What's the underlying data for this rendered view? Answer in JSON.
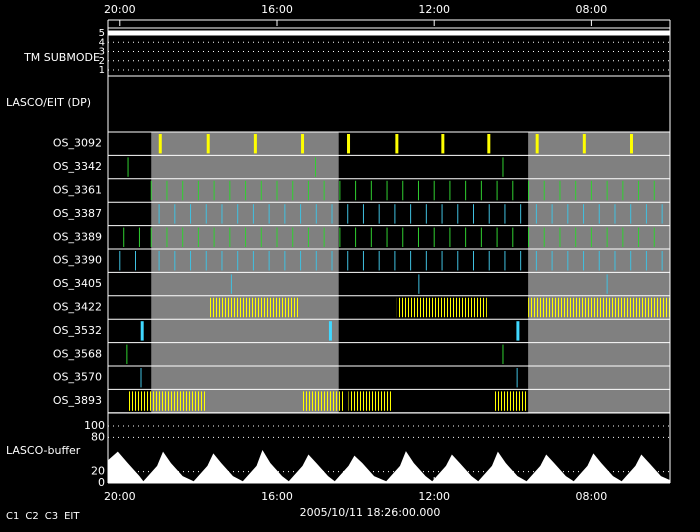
{
  "chart_data": {
    "type": "timeline",
    "xlim": [
      20.3,
      6.0
    ],
    "xticks": [
      {
        "value": 20,
        "label": "20:00"
      },
      {
        "value": 16,
        "label": "16:00"
      },
      {
        "value": 12,
        "label": "12:00"
      },
      {
        "value": 8,
        "label": "08:00"
      }
    ],
    "timestamp": "2005/10/11 18:26:00.000",
    "legend": [
      {
        "label": "C1",
        "color": "#ff3030"
      },
      {
        "label": "C2",
        "color": "#30ff30"
      },
      {
        "label": "C3",
        "color": "#ffffff"
      },
      {
        "label": "EIT",
        "color": "#ffffff"
      }
    ],
    "tm_submode": {
      "label": "TM SUBMODE",
      "ylim": [
        0.5,
        5.5
      ],
      "yticks": [
        1,
        2,
        3,
        4,
        5
      ],
      "x": [
        20.3,
        6.0
      ],
      "values": [
        5,
        5
      ],
      "color": "#ffffff"
    },
    "section_label": "LASCO/EIT (DP)",
    "shaded": [
      [
        19.2,
        14.43
      ],
      [
        9.61,
        6.0
      ]
    ],
    "rows": [
      {
        "name": "OS_3092",
        "color": "#ffff00",
        "mark": "thick",
        "x": [
          18.97,
          17.75,
          16.55,
          15.35,
          14.18,
          12.95,
          11.78,
          10.61,
          9.38,
          8.18,
          6.98
        ]
      },
      {
        "name": "OS_3342",
        "color": "#30d030",
        "x": [
          19.79,
          15.02,
          10.25
        ]
      },
      {
        "name": "OS_3361",
        "color": "#30d030",
        "x": [
          19.2,
          18.8,
          18.4,
          18.0,
          17.6,
          17.2,
          16.8,
          16.4,
          16.0,
          15.6,
          15.2,
          14.8,
          14.4,
          14.0,
          13.6,
          13.2,
          12.8,
          12.4,
          12.0,
          11.6,
          11.2,
          10.8,
          10.4,
          10.0,
          9.6,
          9.2,
          8.8,
          8.4,
          8.0,
          7.6,
          7.2,
          6.8,
          6.4
        ]
      },
      {
        "name": "OS_3387",
        "color": "#40c0e0",
        "x": [
          19.0,
          18.6,
          18.2,
          17.8,
          17.4,
          17.0,
          16.6,
          16.2,
          15.8,
          15.4,
          15.0,
          14.6,
          14.2,
          13.8,
          13.4,
          13.0,
          12.6,
          12.2,
          11.8,
          11.4,
          11.0,
          10.6,
          10.2,
          9.8,
          9.4,
          9.0,
          8.6,
          8.2,
          7.8,
          7.4,
          7.0,
          6.6,
          6.2
        ]
      },
      {
        "name": "OS_3389",
        "color": "#30d030",
        "x": [
          19.9,
          19.5,
          19.2,
          18.8,
          18.4,
          18.0,
          17.6,
          17.2,
          16.8,
          16.4,
          16.0,
          15.6,
          15.2,
          14.8,
          14.4,
          14.0,
          13.6,
          13.2,
          12.8,
          12.4,
          12.0,
          11.6,
          11.2,
          10.8,
          10.4,
          10.0,
          9.6,
          9.2,
          8.8,
          8.4,
          8.0,
          7.6,
          7.2,
          6.8,
          6.4
        ]
      },
      {
        "name": "OS_3390",
        "color": "#40c0e0",
        "x": [
          20.0,
          19.6,
          19.0,
          18.6,
          18.2,
          17.8,
          17.4,
          17.0,
          16.6,
          16.2,
          15.8,
          15.4,
          15.0,
          14.6,
          14.2,
          13.8,
          13.4,
          13.0,
          12.6,
          12.2,
          11.8,
          11.4,
          11.0,
          10.6,
          10.2,
          9.8,
          9.4,
          9.0,
          8.6,
          8.2,
          7.8,
          7.4,
          7.0,
          6.6,
          6.2
        ]
      },
      {
        "name": "OS_3405",
        "color": "#40c0e0",
        "x": [
          17.16,
          12.39,
          7.6
        ]
      },
      {
        "name": "OS_3422",
        "color": "#ffff00",
        "bursts": [
          [
            17.75,
            15.45
          ],
          [
            12.95,
            10.66
          ],
          [
            9.61,
            6.0
          ]
        ]
      },
      {
        "name": "OS_3532",
        "color": "#40d8ff",
        "mark": "thick",
        "x": [
          19.43,
          14.64,
          9.87
        ]
      },
      {
        "name": "OS_3568",
        "color": "#30d030",
        "x": [
          19.82,
          10.25
        ]
      },
      {
        "name": "OS_3570",
        "color": "#40c0e0",
        "x": [
          19.46,
          9.89
        ]
      },
      {
        "name": "OS_3893",
        "color": "#ffff00",
        "bursts": [
          [
            19.79,
            17.83
          ],
          [
            15.35,
            14.3
          ],
          [
            14.18,
            13.06
          ],
          [
            10.5,
            9.66
          ]
        ]
      }
    ],
    "buffer": {
      "label": "LASCO-buffer",
      "ylim": [
        0,
        100
      ],
      "yticks": [
        0,
        20,
        80,
        100
      ],
      "color": "#ffffff",
      "x": [
        20.3,
        20.05,
        19.8,
        19.5,
        19.4,
        19.05,
        18.9,
        18.7,
        18.4,
        18.12,
        17.77,
        17.62,
        17.42,
        17.12,
        16.87,
        16.52,
        16.37,
        16.17,
        15.87,
        15.7,
        15.35,
        15.2,
        15.0,
        14.7,
        14.53,
        14.18,
        14.03,
        13.83,
        13.53,
        13.22,
        12.87,
        12.72,
        12.52,
        12.22,
        12.05,
        11.7,
        11.55,
        11.35,
        11.05,
        10.88,
        10.53,
        10.38,
        10.18,
        9.88,
        9.65,
        9.3,
        9.15,
        8.95,
        8.65,
        8.45,
        8.1,
        7.95,
        7.75,
        7.45,
        7.23,
        6.88,
        6.73,
        6.53,
        6.23,
        6.0
      ],
      "values": [
        40,
        55,
        35,
        12,
        3,
        30,
        55,
        35,
        12,
        3,
        30,
        52,
        35,
        12,
        3,
        30,
        58,
        35,
        12,
        3,
        30,
        50,
        35,
        12,
        3,
        30,
        48,
        35,
        12,
        3,
        30,
        56,
        35,
        12,
        3,
        30,
        50,
        35,
        12,
        3,
        30,
        55,
        35,
        12,
        3,
        30,
        50,
        35,
        12,
        3,
        30,
        52,
        35,
        12,
        3,
        30,
        50,
        35,
        12,
        5
      ]
    }
  }
}
